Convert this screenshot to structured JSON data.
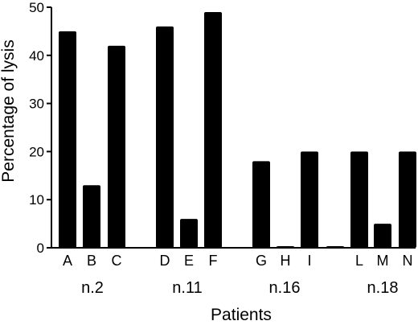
{
  "chart_data": {
    "type": "bar",
    "title": "",
    "xlabel": "Patients",
    "ylabel": "Percentage of lysis",
    "ylim": [
      0,
      50
    ],
    "yticks": [
      0,
      10,
      20,
      30,
      40,
      50
    ],
    "grid": false,
    "categories": [
      "A",
      "B",
      "C",
      "D",
      "E",
      "F",
      "G",
      "H",
      "I",
      "",
      "L",
      "M",
      "N"
    ],
    "values": [
      45,
      13,
      42,
      46,
      6,
      49,
      18,
      0.2,
      20,
      0.3,
      20,
      5,
      20
    ],
    "groups": [
      {
        "label": "n.2",
        "categories": [
          "A",
          "B",
          "C"
        ]
      },
      {
        "label": "n.11",
        "categories": [
          "D",
          "E",
          "F"
        ]
      },
      {
        "label": "n.16",
        "categories": [
          "G",
          "H",
          "I"
        ]
      },
      {
        "label": "n.18",
        "categories": [
          "",
          "L",
          "M",
          "N"
        ]
      }
    ],
    "bar_color": "#000000"
  }
}
